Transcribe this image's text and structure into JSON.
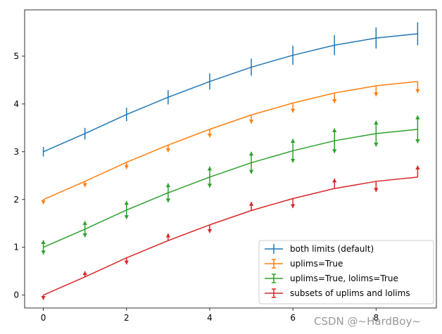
{
  "chart_data": {
    "type": "line",
    "x": [
      0,
      1,
      2,
      3,
      4,
      5,
      6,
      7,
      8,
      9
    ],
    "xlim": [
      -0.45,
      9.45
    ],
    "ylim": [
      -0.27,
      5.97
    ],
    "xticks": [
      0,
      2,
      4,
      6,
      8
    ],
    "yticks": [
      0,
      1,
      2,
      3,
      4,
      5
    ],
    "grid": false,
    "legend_position": "lower-right",
    "series": [
      {
        "name": "both limits (default)",
        "color": "#1f77b4",
        "values": [
          3.0,
          3.38,
          3.78,
          4.14,
          4.47,
          4.77,
          5.02,
          5.23,
          5.38,
          5.47
        ],
        "errors": [
          0.1,
          0.12,
          0.14,
          0.15,
          0.17,
          0.18,
          0.2,
          0.21,
          0.22,
          0.24
        ],
        "error_mode": "both"
      },
      {
        "name": "uplims=True",
        "color": "#ff7f0e",
        "values": [
          2.0,
          2.38,
          2.78,
          3.14,
          3.47,
          3.77,
          4.02,
          4.23,
          4.38,
          4.47
        ],
        "errors": [
          0.1,
          0.12,
          0.14,
          0.15,
          0.17,
          0.18,
          0.2,
          0.21,
          0.22,
          0.24
        ],
        "error_mode": "uplims"
      },
      {
        "name": "uplims=True, lolims=True",
        "color": "#2ca02c",
        "values": [
          1.0,
          1.38,
          1.78,
          2.14,
          2.47,
          2.77,
          3.02,
          3.23,
          3.38,
          3.47
        ],
        "errors": [
          0.15,
          0.17,
          0.19,
          0.2,
          0.22,
          0.23,
          0.25,
          0.26,
          0.27,
          0.29
        ],
        "error_mode": "both-limits"
      },
      {
        "name": "subsets of uplims and lolims",
        "color": "#d62728",
        "values": [
          0.0,
          0.38,
          0.78,
          1.14,
          1.47,
          1.77,
          2.02,
          2.23,
          2.38,
          2.47
        ],
        "errors": [
          0.1,
          0.12,
          0.14,
          0.15,
          0.17,
          0.18,
          0.2,
          0.21,
          0.22,
          0.24
        ],
        "error_mode": "subsets",
        "lolims": [
          false,
          true,
          false,
          true,
          false,
          true,
          false,
          true,
          false,
          true
        ],
        "uplims": [
          true,
          false,
          true,
          false,
          true,
          false,
          true,
          false,
          true,
          false
        ]
      }
    ]
  },
  "watermark": "CSDN @~HardBoy~"
}
